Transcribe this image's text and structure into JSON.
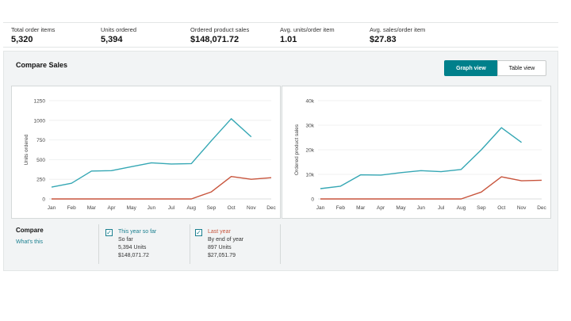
{
  "metrics": [
    {
      "label": "Total order items",
      "value": "5,320"
    },
    {
      "label": "Units ordered",
      "value": "5,394"
    },
    {
      "label": "Ordered product sales",
      "value": "$148,071.72"
    },
    {
      "label": "Avg. units/order item",
      "value": "1.01"
    },
    {
      "label": "Avg. sales/order item",
      "value": "$27.83"
    }
  ],
  "panel": {
    "title": "Compare Sales",
    "graph_view": "Graph view",
    "table_view": "Table view"
  },
  "colors": {
    "this_year": "#35a7b4",
    "last_year": "#c8553d",
    "accent": "#00808b"
  },
  "chart_data": [
    {
      "type": "line",
      "ylabel": "Units ordered",
      "x": [
        "Jan",
        "Feb",
        "Mar",
        "Apr",
        "May",
        "Jun",
        "Jul",
        "Aug",
        "Sep",
        "Oct",
        "Nov",
        "Dec"
      ],
      "ylim": [
        0,
        1250
      ],
      "yticks": [
        0,
        250,
        500,
        750,
        1000,
        1250
      ],
      "ytick_labels": [
        "0",
        "250",
        "500",
        "750",
        "1000",
        "1250"
      ],
      "series": [
        {
          "name": "This year so far",
          "values": [
            150,
            200,
            355,
            360,
            410,
            460,
            445,
            450,
            740,
            1020,
            790,
            null
          ]
        },
        {
          "name": "Last year",
          "values": [
            0,
            0,
            0,
            0,
            0,
            0,
            0,
            0,
            90,
            285,
            250,
            270
          ]
        }
      ]
    },
    {
      "type": "line",
      "ylabel": "Ordered product sales",
      "x": [
        "Jan",
        "Feb",
        "Mar",
        "Apr",
        "May",
        "Jun",
        "Jul",
        "Aug",
        "Sep",
        "Oct",
        "Nov",
        "Dec"
      ],
      "ylim": [
        0,
        40000
      ],
      "yticks": [
        0,
        10000,
        20000,
        30000,
        40000
      ],
      "ytick_labels": [
        "0",
        "10k",
        "20k",
        "30k",
        "40k"
      ],
      "series": [
        {
          "name": "This year so far",
          "values": [
            4200,
            5200,
            9800,
            9700,
            10700,
            11500,
            11100,
            12000,
            20000,
            29000,
            23000,
            null
          ]
        },
        {
          "name": "Last year",
          "values": [
            0,
            0,
            0,
            0,
            0,
            0,
            0,
            0,
            2800,
            9000,
            7400,
            7600
          ]
        }
      ]
    }
  ],
  "compare": {
    "title": "Compare",
    "link": "What's this",
    "this_year": {
      "name": "This year so far",
      "sub": "So far",
      "units": "5,394 Units",
      "sales": "$148,071.72"
    },
    "last_year": {
      "name": "Last year",
      "sub": "By end of year",
      "units": "897 Units",
      "sales": "$27,051.79"
    }
  }
}
